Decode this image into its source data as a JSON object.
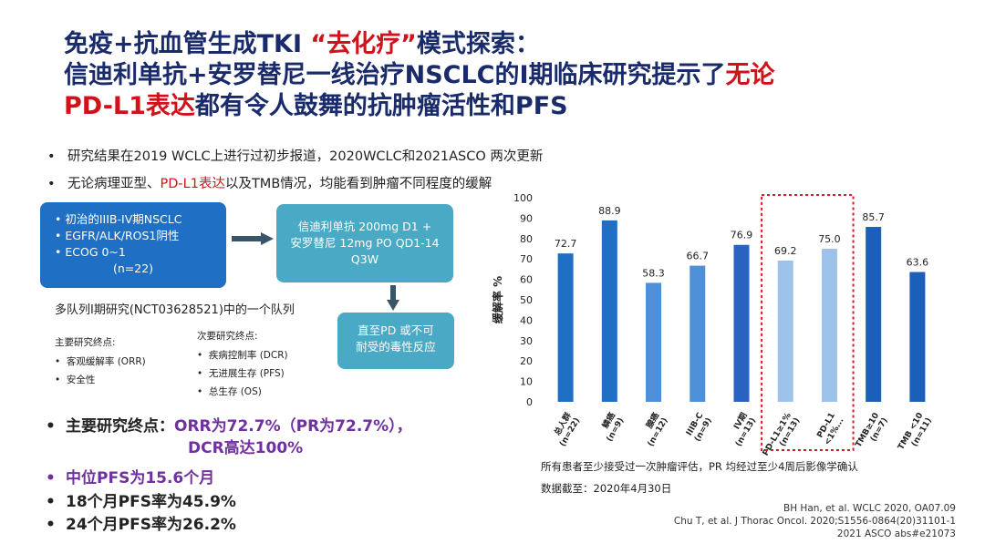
{
  "title": {
    "line1_a": "免疫+抗血管生成TKI ",
    "line1_quote": "“去化疗”",
    "line1_b": "模式探索：",
    "line2_a": "信迪利单抗+安罗替尼一线治疗NSCLC的I期临床研究提示了",
    "line2_red": "无论",
    "line3_red": "PD-L1表达",
    "line3_b": "都有令人鼓舞的抗肿瘤活性和PFS"
  },
  "bullets": {
    "b1": "研究结果在2019 WCLC上进行过初步报道，2020WCLC和2021ASCO 两次更新",
    "b2_a": "无论病理亚型、",
    "b2_red": "PD-L1表达",
    "b2_b": "以及TMB情况，均能看到肿瘤不同程度的缓解"
  },
  "design": {
    "population": [
      "初治的IIIB-IV期NSCLC",
      "EGFR/ALK/ROS1阴性",
      "ECOG 0~1"
    ],
    "n": "(n=22)",
    "treatment": [
      "信迪利单抗 200mg D1 +",
      "安罗替尼 12mg  PO QD1-14",
      "Q3W"
    ],
    "until": [
      "直至PD 或不可",
      "耐受的毒性反应"
    ],
    "cohort": "多队列I期研究(NCT03628521)中的一个队列",
    "primary_title": "主要研究终点:",
    "primary_items": [
      "客观缓解率 (ORR)",
      "安全性"
    ],
    "secondary_title": "次要研究终点:",
    "secondary_items": [
      "疾病控制率 (DCR)",
      "无进展生存 (PFS)",
      "总生存 (OS)"
    ]
  },
  "results": {
    "r1_label": "主要研究终点：",
    "r1_value": "ORR为72.7%（PR为72.7%），",
    "r1_value2": "DCR高达100%",
    "r2": "中位PFS为15.6个月",
    "r3": "18个月PFS率为45.9%",
    "r4": "24个月PFS率为26.2%"
  },
  "chart_data": {
    "type": "bar",
    "ylabel": "缓解率 %",
    "ylim": [
      0,
      100
    ],
    "yticks": [
      0,
      10,
      20,
      30,
      40,
      50,
      60,
      70,
      80,
      90,
      100
    ],
    "categories": [
      "总人群\n(n=22)",
      "鳞癌\n(n=9)",
      "腺癌\n(n=12)",
      "IIIB-C\n(n=9)",
      "IV期\n(n=13)",
      "PD-L1≥1%\n(n=13)",
      "PD-L1\n<1%...",
      "TMB≥10\n(n=7)",
      "TMB <10\n(n=11)"
    ],
    "values": [
      72.7,
      88.9,
      58.3,
      66.7,
      76.9,
      69.2,
      75.0,
      85.7,
      63.6
    ],
    "labels": [
      "72.7",
      "88.9",
      "58.3",
      "66.7",
      "76.9",
      "69.2",
      "75.0",
      "85.7",
      "63.6"
    ],
    "colors": [
      "#1f6fc4",
      "#1f6fc4",
      "#4f8fd8",
      "#4f8fd8",
      "#2a62c0",
      "#9ec3ea",
      "#9ec3ea",
      "#1b5fb8",
      "#1b5fb8"
    ],
    "highlight": "PD-L1",
    "highlight_color": "#e0141e"
  },
  "notes": {
    "n1": "所有患者至少接受过一次肿瘤评估，PR 均经过至少4周后影像学确认",
    "n2": "数据截至：2020年4月30日"
  },
  "citations": [
    "BH Han, et al. WCLC 2020, OA07.09",
    "Chu T,  et al. J Thorac Oncol. 2020;S1556-0864(20)31101-1",
    "2021 ASCO abs#e21073"
  ]
}
